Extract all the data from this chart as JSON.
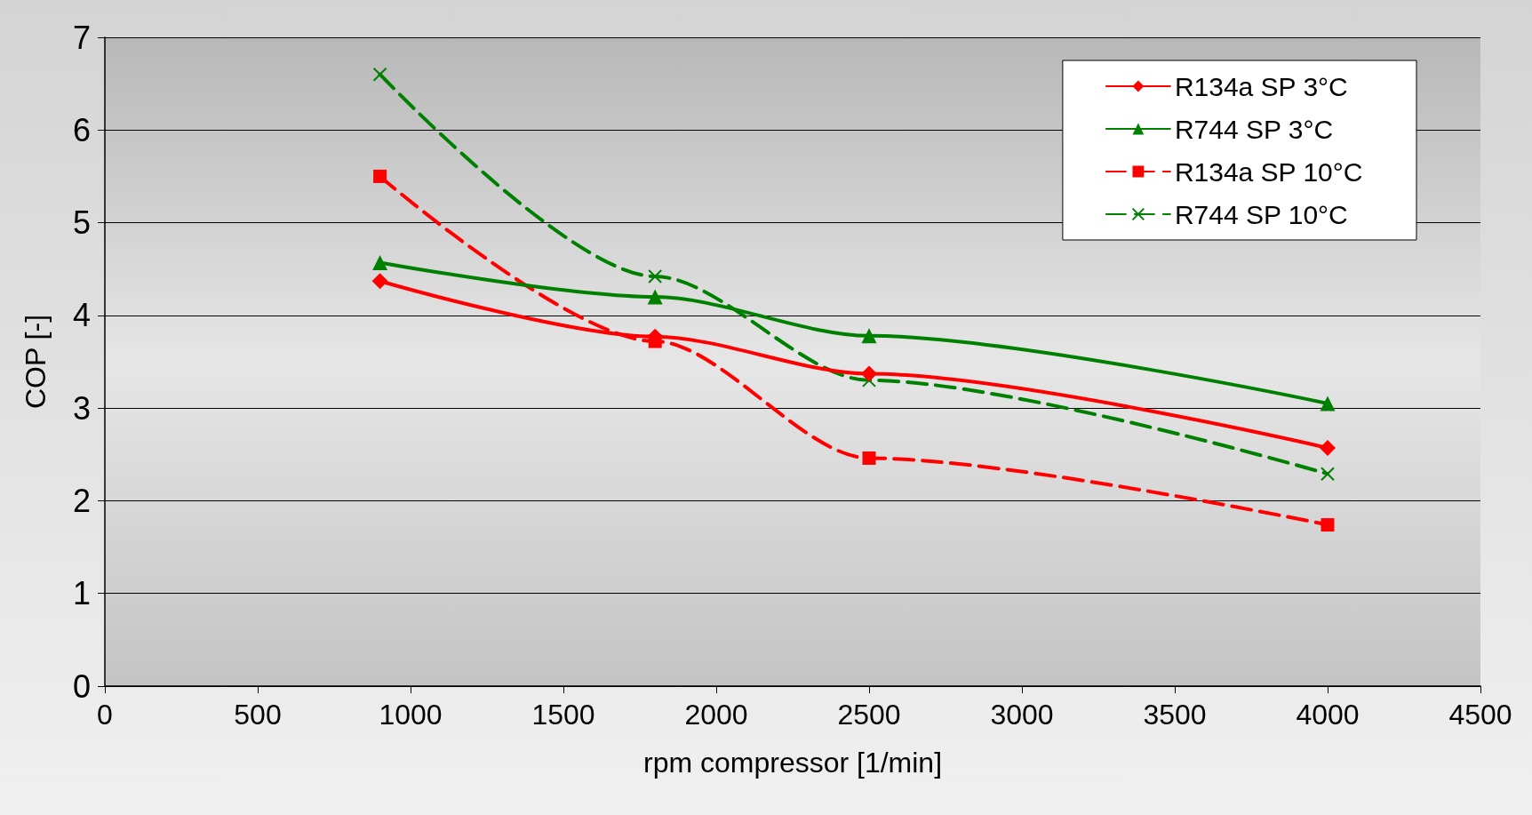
{
  "chart_data": {
    "type": "line",
    "xlabel": "rpm compressor [1/min]",
    "ylabel": "COP [-]",
    "xlim": [
      0,
      4500
    ],
    "xticks": [
      0,
      500,
      1000,
      1500,
      2000,
      2500,
      3000,
      3500,
      4000,
      4500
    ],
    "ylim": [
      0,
      7
    ],
    "yticks": [
      0,
      1,
      2,
      3,
      4,
      5,
      6,
      7
    ],
    "grid": "y",
    "legend": "top right",
    "x": [
      900,
      1800,
      2500,
      4000
    ],
    "series": [
      {
        "name": "R134a SP 3°C",
        "color": "#ff0000",
        "marker": "diamond",
        "line_style": "solid",
        "values": [
          4.37,
          3.77,
          3.37,
          2.57
        ]
      },
      {
        "name": "R744 SP 3°C",
        "color": "#008000",
        "marker": "triangle",
        "line_style": "solid",
        "values": [
          4.57,
          4.2,
          3.78,
          3.05
        ]
      },
      {
        "name": "R134a SP 10°C",
        "color": "#ff0000",
        "marker": "square",
        "line_style": "dashed",
        "values": [
          5.5,
          3.72,
          2.46,
          1.74
        ]
      },
      {
        "name": "R744 SP 10°C",
        "color": "#008000",
        "marker": "cross",
        "line_style": "dashed",
        "values": [
          6.6,
          4.42,
          3.3,
          2.29
        ]
      }
    ]
  }
}
